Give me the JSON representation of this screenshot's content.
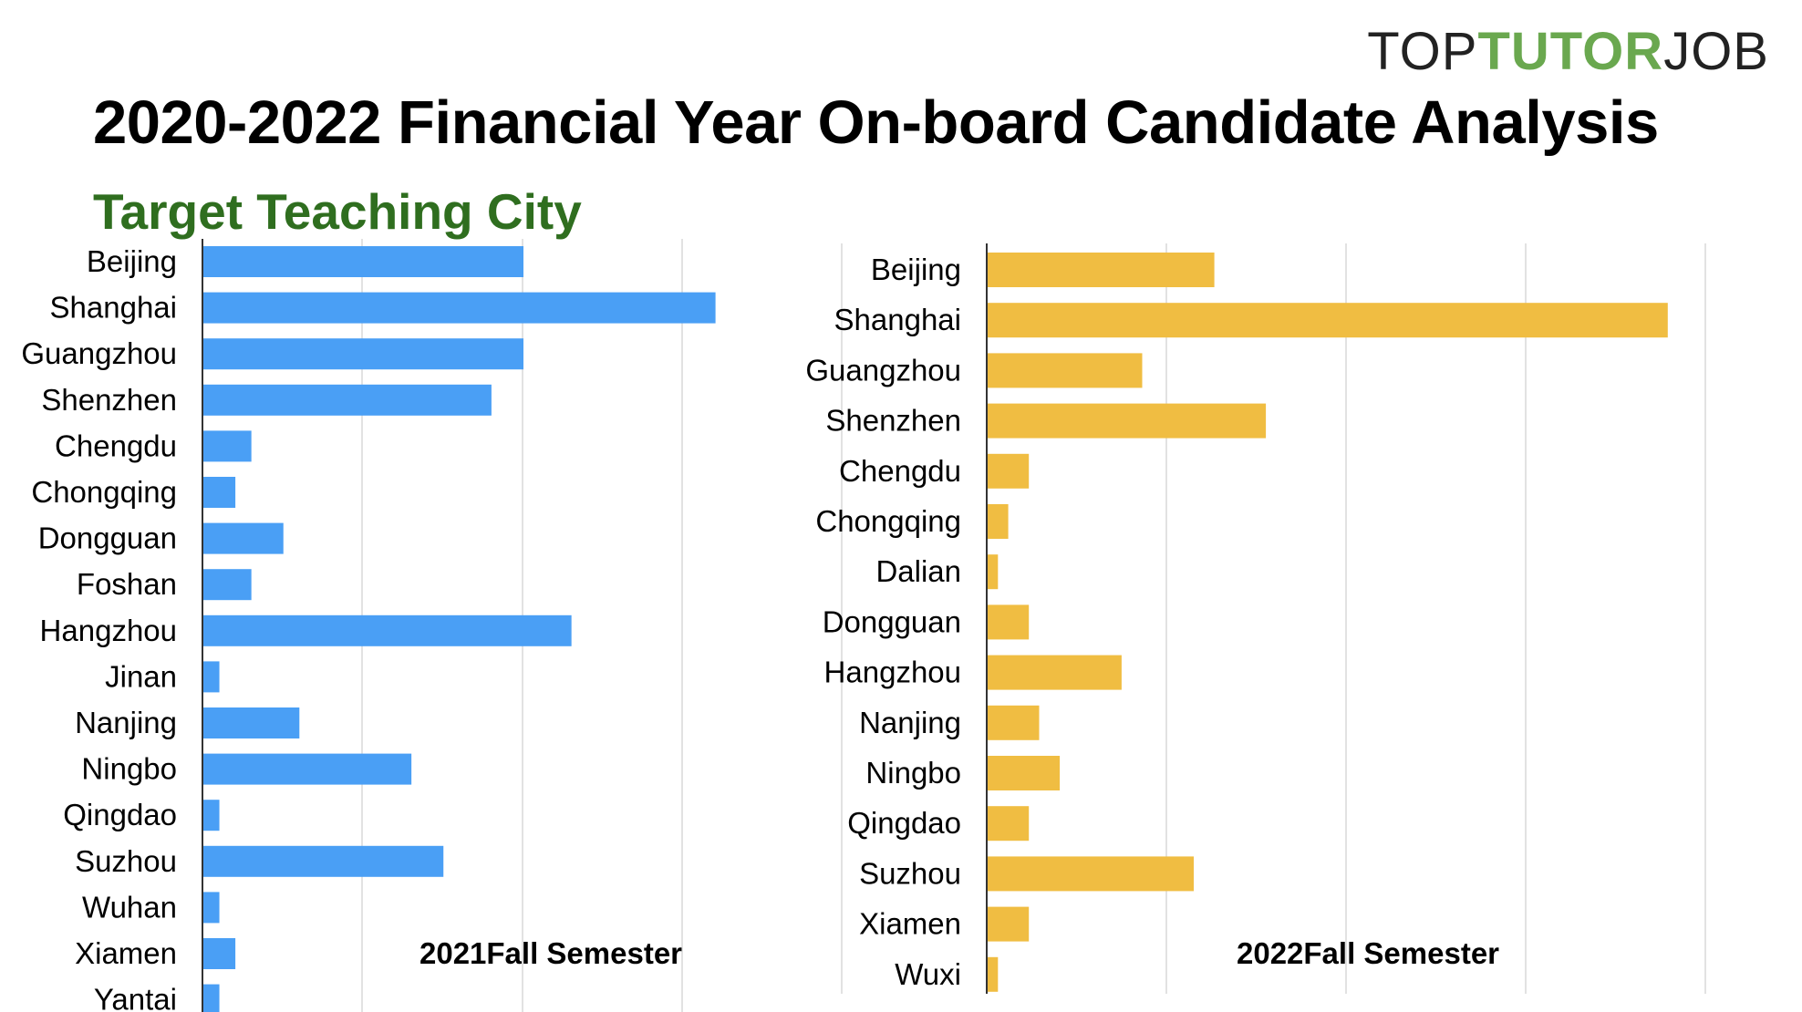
{
  "header": {
    "logo": {
      "part1": "TOP",
      "part2": "TUTOR",
      "part3": "JOB"
    },
    "title": "2020-2022 Financial Year On-board Candidate Analysis",
    "subtitle": "Target Teaching City"
  },
  "colors": {
    "series_2021": "#4a9ff5",
    "series_2022": "#f0bd42",
    "grid": "#d9d9d9",
    "logo_green": "#6aa84f",
    "subtitle_green": "#2f6e1f"
  },
  "chart_data": [
    {
      "type": "bar",
      "orientation": "horizontal",
      "title": "2021Fall Semester",
      "categories": [
        "Beijing",
        "Shanghai",
        "Guangzhou",
        "Shenzhen",
        "Chengdu",
        "Chongqing",
        "Dongguan",
        "Foshan",
        "Hangzhou",
        "Jinan",
        "Nanjing",
        "Ningbo",
        "Qingdao",
        "Suzhou",
        "Wuhan",
        "Xiamen",
        "Yantai"
      ],
      "values": [
        20,
        32,
        20,
        18,
        3,
        2,
        5,
        3,
        23,
        1,
        6,
        13,
        1,
        15,
        1,
        2,
        1
      ],
      "xlim": [
        0,
        32
      ],
      "grid": true
    },
    {
      "type": "bar",
      "orientation": "horizontal",
      "title": "2022Fall Semester",
      "categories": [
        "Beijing",
        "Shanghai",
        "Guangzhou",
        "Shenzhen",
        "Chengdu",
        "Chongqing",
        "Dalian",
        "Dongguan",
        "Hangzhou",
        "Nanjing",
        "Ningbo",
        "Qingdao",
        "Suzhou",
        "Xiamen",
        "Wuxi"
      ],
      "values": [
        22,
        66,
        15,
        27,
        4,
        2,
        1,
        4,
        13,
        5,
        7,
        4,
        20,
        4,
        1
      ],
      "xlim": [
        0,
        70
      ],
      "grid": true
    }
  ]
}
